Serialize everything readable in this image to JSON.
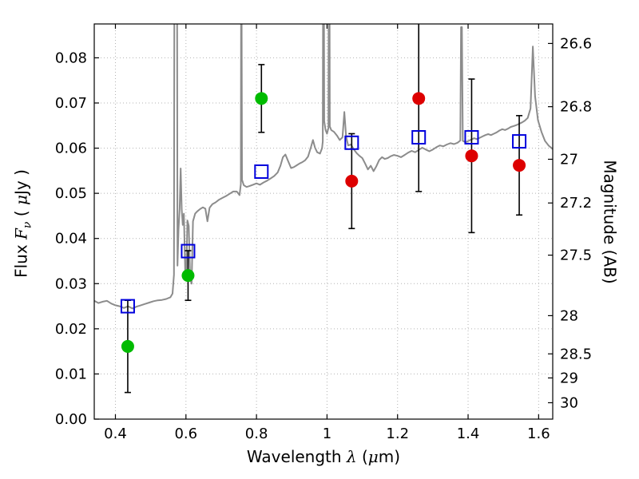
{
  "figure": {
    "background": "#ffffff"
  },
  "chart_data": {
    "type": "line",
    "title": "",
    "xlabel": "Wavelength λ (μm)",
    "ylabel_left": "Flux Fν ( μJy )",
    "ylabel_right": "Magnitude (AB)",
    "xlabel_parts": {
      "a": "Wavelength ",
      "b": "λ",
      "c": " (",
      "d": "μ",
      "e": "m)"
    },
    "ylabel_left_parts": {
      "a": "Flux ",
      "b": "F",
      "c": "ν",
      "d": " ( ",
      "e": "μ",
      "f": "Jy )"
    },
    "xlim": [
      0.34,
      1.64
    ],
    "ylim": [
      0,
      0.0875
    ],
    "grid": {
      "style": "dotted",
      "color": "#b3b3b3"
    },
    "frame_color": "#000000",
    "x_ticks": [
      {
        "v": 0.4,
        "label": "0.4"
      },
      {
        "v": 0.6,
        "label": "0.6"
      },
      {
        "v": 0.8,
        "label": "0.8"
      },
      {
        "v": 1.0,
        "label": "1"
      },
      {
        "v": 1.2,
        "label": "1.2"
      },
      {
        "v": 1.4,
        "label": "1.4"
      },
      {
        "v": 1.6,
        "label": "1.6"
      }
    ],
    "y_ticks_left": [
      {
        "v": 0.0,
        "label": "0.00"
      },
      {
        "v": 0.01,
        "label": "0.01"
      },
      {
        "v": 0.02,
        "label": "0.02"
      },
      {
        "v": 0.03,
        "label": "0.03"
      },
      {
        "v": 0.04,
        "label": "0.04"
      },
      {
        "v": 0.05,
        "label": "0.05"
      },
      {
        "v": 0.06,
        "label": "0.06"
      },
      {
        "v": 0.07,
        "label": "0.07"
      },
      {
        "v": 0.08,
        "label": "0.08"
      }
    ],
    "y_ticks_right": [
      {
        "v": 0.08318,
        "label": "26.6"
      },
      {
        "v": 0.06918,
        "label": "26.8"
      },
      {
        "v": 0.05754,
        "label": "27"
      },
      {
        "v": 0.04786,
        "label": "27.2"
      },
      {
        "v": 0.03631,
        "label": "27.5"
      },
      {
        "v": 0.02291,
        "label": "28"
      },
      {
        "v": 0.01445,
        "label": "28.5"
      },
      {
        "v": 0.00912,
        "label": "29"
      },
      {
        "v": 0.00363,
        "label": "30"
      }
    ],
    "errorbar": {
      "color": "#000000",
      "width": 1.6,
      "cap": 4
    },
    "spectrum": {
      "name": "model-spectrum",
      "color": "#8c8c8c",
      "width": 2,
      "points": [
        [
          0.34,
          0.0262
        ],
        [
          0.352,
          0.0257
        ],
        [
          0.364,
          0.026
        ],
        [
          0.376,
          0.0262
        ],
        [
          0.388,
          0.0256
        ],
        [
          0.4,
          0.0252
        ],
        [
          0.412,
          0.025
        ],
        [
          0.424,
          0.0246
        ],
        [
          0.436,
          0.025
        ],
        [
          0.448,
          0.0245
        ],
        [
          0.46,
          0.0249
        ],
        [
          0.472,
          0.0252
        ],
        [
          0.484,
          0.0255
        ],
        [
          0.496,
          0.0258
        ],
        [
          0.508,
          0.0261
        ],
        [
          0.52,
          0.0263
        ],
        [
          0.532,
          0.0264
        ],
        [
          0.544,
          0.0266
        ],
        [
          0.556,
          0.027
        ],
        [
          0.562,
          0.0278
        ],
        [
          0.566,
          0.032
        ],
        [
          0.568,
          0.15
        ],
        [
          0.574,
          0.15
        ],
        [
          0.576,
          0.034
        ],
        [
          0.579,
          0.042
        ],
        [
          0.582,
          0.0465
        ],
        [
          0.585,
          0.0555
        ],
        [
          0.588,
          0.0465
        ],
        [
          0.591,
          0.043
        ],
        [
          0.594,
          0.0455
        ],
        [
          0.598,
          0.0325
        ],
        [
          0.601,
          0.031
        ],
        [
          0.604,
          0.044
        ],
        [
          0.608,
          0.0428
        ],
        [
          0.612,
          0.031
        ],
        [
          0.616,
          0.03
        ],
        [
          0.62,
          0.0438
        ],
        [
          0.626,
          0.0455
        ],
        [
          0.632,
          0.046
        ],
        [
          0.64,
          0.0465
        ],
        [
          0.648,
          0.0469
        ],
        [
          0.655,
          0.0466
        ],
        [
          0.661,
          0.0438
        ],
        [
          0.667,
          0.0468
        ],
        [
          0.675,
          0.0476
        ],
        [
          0.684,
          0.048
        ],
        [
          0.694,
          0.0486
        ],
        [
          0.704,
          0.049
        ],
        [
          0.714,
          0.0494
        ],
        [
          0.724,
          0.0499
        ],
        [
          0.734,
          0.0504
        ],
        [
          0.744,
          0.0504
        ],
        [
          0.752,
          0.0496
        ],
        [
          0.7555,
          0.052
        ],
        [
          0.757,
          0.12
        ],
        [
          0.759,
          0.053
        ],
        [
          0.764,
          0.0518
        ],
        [
          0.772,
          0.0514
        ],
        [
          0.78,
          0.0516
        ],
        [
          0.79,
          0.0519
        ],
        [
          0.8,
          0.0522
        ],
        [
          0.81,
          0.0519
        ],
        [
          0.82,
          0.0524
        ],
        [
          0.83,
          0.0528
        ],
        [
          0.84,
          0.0533
        ],
        [
          0.85,
          0.0538
        ],
        [
          0.86,
          0.0546
        ],
        [
          0.868,
          0.0561
        ],
        [
          0.875,
          0.058
        ],
        [
          0.882,
          0.0586
        ],
        [
          0.89,
          0.0571
        ],
        [
          0.898,
          0.0556
        ],
        [
          0.906,
          0.0558
        ],
        [
          0.914,
          0.0562
        ],
        [
          0.922,
          0.0566
        ],
        [
          0.93,
          0.0569
        ],
        [
          0.938,
          0.0573
        ],
        [
          0.946,
          0.0581
        ],
        [
          0.954,
          0.0601
        ],
        [
          0.96,
          0.0618
        ],
        [
          0.966,
          0.0601
        ],
        [
          0.972,
          0.0591
        ],
        [
          0.98,
          0.0588
        ],
        [
          0.986,
          0.06
        ],
        [
          0.988,
          0.0615
        ],
        [
          0.99,
          0.14
        ],
        [
          0.992,
          0.066
        ],
        [
          0.996,
          0.064
        ],
        [
          1.0,
          0.0632
        ],
        [
          1.004,
          0.0645
        ],
        [
          1.006,
          0.14
        ],
        [
          1.008,
          0.0648
        ],
        [
          1.012,
          0.064
        ],
        [
          1.02,
          0.0636
        ],
        [
          1.028,
          0.0628
        ],
        [
          1.036,
          0.0618
        ],
        [
          1.044,
          0.0624
        ],
        [
          1.049,
          0.068
        ],
        [
          1.054,
          0.0626
        ],
        [
          1.06,
          0.0606
        ],
        [
          1.068,
          0.0608
        ],
        [
          1.076,
          0.0597
        ],
        [
          1.084,
          0.0589
        ],
        [
          1.092,
          0.0583
        ],
        [
          1.1,
          0.0578
        ],
        [
          1.108,
          0.0566
        ],
        [
          1.116,
          0.0553
        ],
        [
          1.124,
          0.0561
        ],
        [
          1.132,
          0.0549
        ],
        [
          1.14,
          0.056
        ],
        [
          1.148,
          0.0574
        ],
        [
          1.156,
          0.058
        ],
        [
          1.164,
          0.0576
        ],
        [
          1.172,
          0.0578
        ],
        [
          1.18,
          0.0582
        ],
        [
          1.19,
          0.0585
        ],
        [
          1.2,
          0.0583
        ],
        [
          1.21,
          0.058
        ],
        [
          1.22,
          0.0585
        ],
        [
          1.23,
          0.059
        ],
        [
          1.24,
          0.0594
        ],
        [
          1.25,
          0.0591
        ],
        [
          1.26,
          0.0596
        ],
        [
          1.27,
          0.0601
        ],
        [
          1.28,
          0.0597
        ],
        [
          1.29,
          0.0593
        ],
        [
          1.3,
          0.0597
        ],
        [
          1.31,
          0.0602
        ],
        [
          1.32,
          0.0606
        ],
        [
          1.33,
          0.0604
        ],
        [
          1.34,
          0.0608
        ],
        [
          1.35,
          0.0611
        ],
        [
          1.36,
          0.0609
        ],
        [
          1.37,
          0.0612
        ],
        [
          1.378,
          0.0617
        ],
        [
          1.38,
          0.0868
        ],
        [
          1.3825,
          0.0868
        ],
        [
          1.385,
          0.0616
        ],
        [
          1.393,
          0.0613
        ],
        [
          1.401,
          0.0616
        ],
        [
          1.409,
          0.0619
        ],
        [
          1.417,
          0.0622
        ],
        [
          1.425,
          0.062
        ],
        [
          1.433,
          0.0623
        ],
        [
          1.441,
          0.0626
        ],
        [
          1.449,
          0.0629
        ],
        [
          1.457,
          0.0631
        ],
        [
          1.465,
          0.0629
        ],
        [
          1.473,
          0.0632
        ],
        [
          1.481,
          0.0635
        ],
        [
          1.489,
          0.0639
        ],
        [
          1.497,
          0.0642
        ],
        [
          1.505,
          0.064
        ],
        [
          1.513,
          0.0643
        ],
        [
          1.521,
          0.0647
        ],
        [
          1.529,
          0.0649
        ],
        [
          1.537,
          0.0651
        ],
        [
          1.545,
          0.0654
        ],
        [
          1.553,
          0.0657
        ],
        [
          1.561,
          0.0661
        ],
        [
          1.569,
          0.0667
        ],
        [
          1.577,
          0.0688
        ],
        [
          1.5835,
          0.0825
        ],
        [
          1.59,
          0.0715
        ],
        [
          1.598,
          0.0662
        ],
        [
          1.608,
          0.0636
        ],
        [
          1.618,
          0.0616
        ],
        [
          1.628,
          0.0606
        ],
        [
          1.64,
          0.0598
        ]
      ]
    },
    "series": [
      {
        "name": "observed-optical",
        "marker": "circle",
        "color": "#00bb00",
        "size": 8,
        "points": [
          {
            "x": 0.435,
            "y": 0.0161,
            "err": 0.0102
          },
          {
            "x": 0.606,
            "y": 0.0318,
            "err": 0.0055
          },
          {
            "x": 0.814,
            "y": 0.071,
            "err": 0.0075
          }
        ]
      },
      {
        "name": "observed-infrared",
        "marker": "circle",
        "color": "#dd0000",
        "size": 8,
        "points": [
          {
            "x": 1.07,
            "y": 0.0527,
            "err": 0.0105
          },
          {
            "x": 1.26,
            "y": 0.071,
            "err": 0.0206
          },
          {
            "x": 1.41,
            "y": 0.0583,
            "err": 0.017
          },
          {
            "x": 1.545,
            "y": 0.0562,
            "err": 0.011
          }
        ]
      },
      {
        "name": "model-photometry",
        "marker": "square-open",
        "color": "#0000dd",
        "size": 16,
        "points": [
          {
            "x": 0.435,
            "y": 0.025
          },
          {
            "x": 0.606,
            "y": 0.0372
          },
          {
            "x": 0.814,
            "y": 0.0548
          },
          {
            "x": 1.07,
            "y": 0.0612
          },
          {
            "x": 1.26,
            "y": 0.0624
          },
          {
            "x": 1.41,
            "y": 0.0624
          },
          {
            "x": 1.545,
            "y": 0.0615
          }
        ]
      }
    ]
  }
}
